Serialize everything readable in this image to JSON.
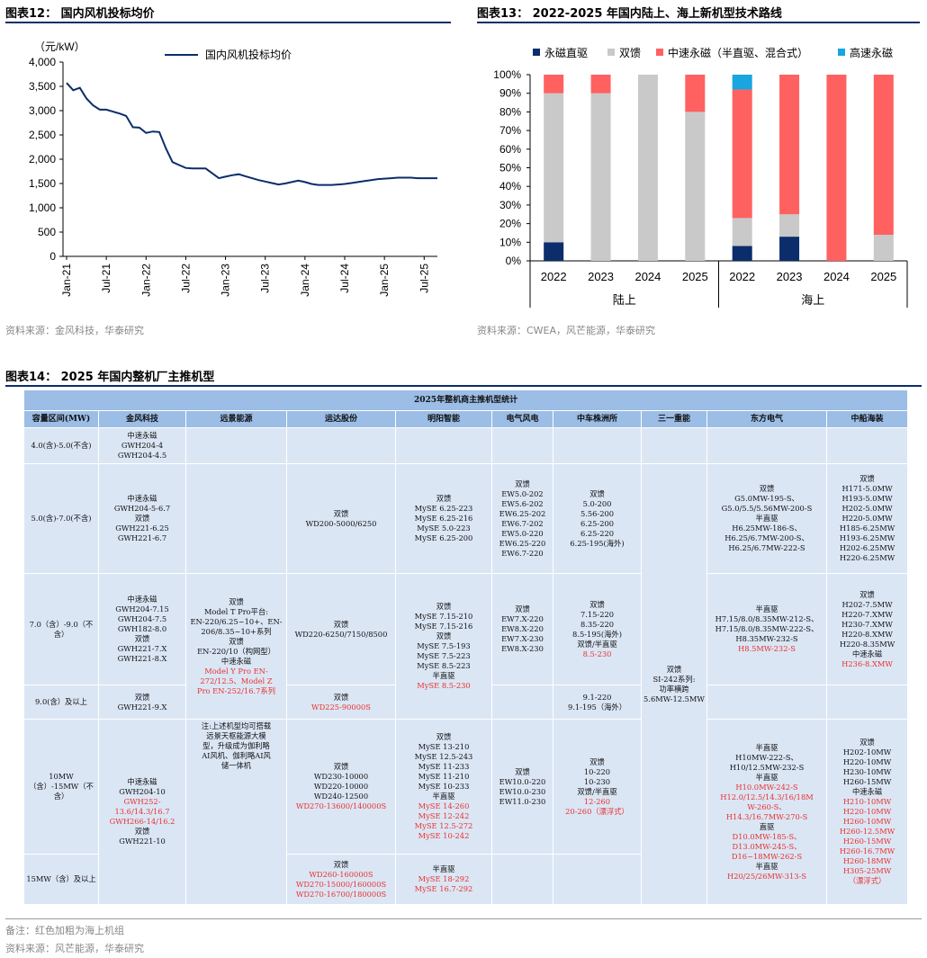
{
  "fig12": {
    "title": "图表12：  国内风机投标均价",
    "source": "资料来源：金风科技，华泰研究"
  },
  "fig13": {
    "title": "图表13：  2022-2025 年国内陆上、海上新机型技术路线",
    "source": "资料来源：CWEA，风芒能源，华泰研究"
  },
  "fig14": {
    "title": "图表14：  2025 年国内整机厂主推机型",
    "note": "备注：红色加粗为海上机组",
    "source": "资料来源：风芒能源，华泰研究"
  },
  "chart_data": [
    {
      "type": "line",
      "ylabel": "（元/kW）",
      "ylim": [
        0,
        4000
      ],
      "yticks": [
        "0",
        "500",
        "1,000",
        "1,500",
        "2,000",
        "2,500",
        "3,000",
        "3,500",
        "4,000"
      ],
      "xticks": [
        "Jan-21",
        "Jul-21",
        "Jan-22",
        "Jul-22",
        "Jan-23",
        "Jul-23",
        "Jan-24",
        "Jul-24",
        "Jan-25",
        "Jul-25"
      ],
      "grid": false,
      "legend_position": "top",
      "series": [
        {
          "name": "国内风机投标均价",
          "color": "#0b2d6b",
          "x": [
            "2021-01",
            "2021-02",
            "2021-03",
            "2021-04",
            "2021-05",
            "2021-06",
            "2021-07",
            "2021-08",
            "2021-09",
            "2021-10",
            "2021-11",
            "2021-12",
            "2022-01",
            "2022-02",
            "2022-03",
            "2022-04",
            "2022-05",
            "2022-06",
            "2022-07",
            "2022-08",
            "2022-09",
            "2022-10",
            "2022-11",
            "2022-12",
            "2023-01",
            "2023-02",
            "2023-03",
            "2023-04",
            "2023-05",
            "2023-06",
            "2023-07",
            "2023-08",
            "2023-09",
            "2023-10",
            "2023-11",
            "2023-12",
            "2024-01",
            "2024-02",
            "2024-03",
            "2024-04",
            "2024-05",
            "2024-06",
            "2024-07",
            "2024-08",
            "2024-09",
            "2024-10",
            "2024-11",
            "2024-12",
            "2025-01",
            "2025-02",
            "2025-03",
            "2025-04",
            "2025-05",
            "2025-06",
            "2025-07",
            "2025-08",
            "2025-09"
          ],
          "values": [
            3570,
            3420,
            3470,
            3250,
            3110,
            3020,
            3020,
            2980,
            2940,
            2890,
            2660,
            2650,
            2540,
            2570,
            2560,
            2220,
            1940,
            1880,
            1820,
            1810,
            1810,
            1810,
            1710,
            1610,
            1640,
            1670,
            1690,
            1650,
            1610,
            1570,
            1540,
            1510,
            1480,
            1500,
            1530,
            1560,
            1530,
            1490,
            1470,
            1470,
            1470,
            1480,
            1490,
            1510,
            1530,
            1550,
            1570,
            1590,
            1600,
            1610,
            1620,
            1620,
            1620,
            1610,
            1610,
            1610,
            1610
          ]
        }
      ]
    },
    {
      "type": "bar",
      "stacked": true,
      "ylim": [
        0,
        100
      ],
      "yticks": [
        "0%",
        "10%",
        "20%",
        "30%",
        "40%",
        "50%",
        "60%",
        "70%",
        "80%",
        "90%",
        "100%"
      ],
      "categories": [
        "2022",
        "2023",
        "2024",
        "2025",
        "2022",
        "2023",
        "2024",
        "2025"
      ],
      "groups": [
        {
          "label": "陆上",
          "span": 4
        },
        {
          "label": "海上",
          "span": 4
        }
      ],
      "legend_position": "top",
      "series": [
        {
          "name": "永磁直驱",
          "color": "#0b2d6b",
          "values": [
            10,
            0,
            0,
            0,
            8,
            13,
            0,
            0
          ]
        },
        {
          "name": "双馈",
          "color": "#c9c9c9",
          "values": [
            80,
            90,
            100,
            80,
            15,
            12,
            0,
            14
          ]
        },
        {
          "name": "中速永磁（半直驱、混合式）",
          "color": "#ff6161",
          "values": [
            10,
            10,
            0,
            20,
            69,
            75,
            100,
            86
          ]
        },
        {
          "name": "高速永磁",
          "color": "#18a5e0",
          "values": [
            0,
            0,
            0,
            0,
            8,
            0,
            0,
            0
          ]
        }
      ]
    },
    {
      "type": "table",
      "title": "2025年整机商主推机型统计",
      "columns": [
        "容量区间(MW)",
        "金风科技",
        "远景能源",
        "运达股份",
        "明阳智能",
        "电气风电",
        "中车株洲所",
        "三一重能",
        "东方电气",
        "中船海装"
      ],
      "rows": [
        [
          "4.0(含)-5.0(不含)"
        ],
        [
          "5.0(含)-7.0(不含)"
        ],
        [
          "7.0（含）-9.0（不含）"
        ],
        [
          "9.0(含）及以上"
        ],
        [
          "10MW（含）-15MW（不含）"
        ],
        [
          "15MW（含）及以上"
        ]
      ]
    }
  ],
  "table": {
    "c_r1_jf": [
      {
        "t": "中速永磁"
      },
      {
        "t": "GWH204-4"
      },
      {
        "t": "GWH204-4.5"
      }
    ],
    "c_r2_jf": [
      {
        "t": "中速永磁"
      },
      {
        "t": "GWH204-5-6.7"
      },
      {
        "t": "双馈"
      },
      {
        "t": "GWH221-6.25"
      },
      {
        "t": "GWH221-6.7"
      }
    ],
    "c_r3_jf": [
      {
        "t": "中速永磁"
      },
      {
        "t": "GWH204-7.15"
      },
      {
        "t": "GWH204-7.5"
      },
      {
        "t": "GWH182-8.0"
      },
      {
        "t": "双馈"
      },
      {
        "t": "GWH221-7.X"
      },
      {
        "t": "GWH221-8.X"
      }
    ],
    "c_r4_jf": [
      {
        "t": "双馈"
      },
      {
        "t": "GWH221-9.X"
      }
    ],
    "c_r56_jf": [
      {
        "t": "中速永磁"
      },
      {
        "t": "GWH204-10"
      },
      {
        "t": "GWH252-",
        "r": 1
      },
      {
        "t": "13.6/14.3/16.7",
        "r": 1
      },
      {
        "t": "GWH266-14/16.2",
        "r": 1
      },
      {
        "t": "双馈"
      },
      {
        "t": "GWH221-10"
      }
    ],
    "c_yj_a": [
      {
        "t": "双馈"
      },
      {
        "t": "Model T Pro平台:"
      },
      {
        "t": "EN-220/6.25~10+、EN-"
      },
      {
        "t": "206/8.35~10+系列"
      },
      {
        "t": "双馈"
      },
      {
        "t": "EN-220/10（构网型）"
      },
      {
        "t": "中速永磁"
      },
      {
        "t": "Model Y Pro EN-",
        "r": 1
      },
      {
        "t": "272/12.5、Model Z",
        "r": 1
      },
      {
        "t": "Pro EN-252/16.7系列",
        "r": 1
      }
    ],
    "c_yj_b": [
      {
        "t": "注:上述机型均可搭载"
      },
      {
        "t": "远景天枢能源大模"
      },
      {
        "t": "型，升级成为伽利略"
      },
      {
        "t": "AI风机、伽利略AI风"
      },
      {
        "t": "储一体机"
      }
    ],
    "c_r2_yd": [
      {
        "t": "双馈"
      },
      {
        "t": "WD200-5000/6250"
      }
    ],
    "c_r3_yd": [
      {
        "t": "双馈"
      },
      {
        "t": "WD220-6250/7150/8500"
      }
    ],
    "c_r4_yd": [
      {
        "t": "双馈"
      },
      {
        "t": "WD225-90000S",
        "r": 1
      }
    ],
    "c_r5_yd": [
      {
        "t": "双馈"
      },
      {
        "t": "WD230-10000"
      },
      {
        "t": "WD220-10000"
      },
      {
        "t": "WD240-12500"
      },
      {
        "t": "WD270-13600/140000S",
        "r": 1
      }
    ],
    "c_r6_yd": [
      {
        "t": "双馈"
      },
      {
        "t": "WD260-160000S",
        "r": 1
      },
      {
        "t": "WD270-15000/160000S",
        "r": 1
      },
      {
        "t": "WD270-16700/180000S",
        "r": 1
      }
    ],
    "c_r2_my": [
      {
        "t": "双馈"
      },
      {
        "t": "MySE 6.25-223"
      },
      {
        "t": "MySE 6.25-216"
      },
      {
        "t": "MySE 5.0-223"
      },
      {
        "t": "MySE 6.25-200"
      }
    ],
    "c_r3_my": [
      {
        "t": "双馈"
      },
      {
        "t": "MySE 7.15-210"
      },
      {
        "t": "MySE 7.15-216"
      },
      {
        "t": "双馈"
      },
      {
        "t": "MySE 7.5-193"
      },
      {
        "t": "MySE 7.5-223"
      },
      {
        "t": "MySE 8.5-223"
      },
      {
        "t": "半直驱"
      },
      {
        "t": "MySE 8.5-230",
        "r": 1
      }
    ],
    "c_r5_my": [
      {
        "t": "双馈"
      },
      {
        "t": "MySE 13-210"
      },
      {
        "t": "MySE 12.5-243"
      },
      {
        "t": "MySE 11-233"
      },
      {
        "t": "MySE 11-210"
      },
      {
        "t": "MySE 10-233"
      },
      {
        "t": "半直驱"
      },
      {
        "t": "MySE 14-260",
        "r": 1
      },
      {
        "t": "MySE 12-242",
        "r": 1
      },
      {
        "t": "MySE 12.5-272",
        "r": 1
      },
      {
        "t": "MySE 10-242",
        "r": 1
      }
    ],
    "c_r6_my": [
      {
        "t": "半直驱"
      },
      {
        "t": "MySE 18-292",
        "r": 1
      },
      {
        "t": "MySE 16.7-292",
        "r": 1
      }
    ],
    "c_r2_dq": [
      {
        "t": "双馈"
      },
      {
        "t": "EW5.0-202"
      },
      {
        "t": "EW5.6-202"
      },
      {
        "t": "EW6.25-202"
      },
      {
        "t": "EW6.7-202"
      },
      {
        "t": "EW5.0-220"
      },
      {
        "t": "EW6.25-220"
      },
      {
        "t": "EW6.7-220"
      }
    ],
    "c_r3_dq": [
      {
        "t": "双馈"
      },
      {
        "t": "EW7.X-220"
      },
      {
        "t": "EW8.X-220"
      },
      {
        "t": "EW7.X-230"
      },
      {
        "t": "EW8.X-230"
      }
    ],
    "c_r5_dq": [
      {
        "t": "双馈"
      },
      {
        "t": "EW10.0-220"
      },
      {
        "t": "EW10.0-230"
      },
      {
        "t": "EW11.0-230"
      }
    ],
    "c_r2_zc": [
      {
        "t": "双馈"
      },
      {
        "t": "5.0-200"
      },
      {
        "t": "5.56-200"
      },
      {
        "t": "6.25-200"
      },
      {
        "t": "6.25-220"
      },
      {
        "t": "6.25-195(海外)"
      }
    ],
    "c_r3_zc": [
      {
        "t": "双馈"
      },
      {
        "t": "7.15-220"
      },
      {
        "t": "8.35-220"
      },
      {
        "t": "8.5-195(海外)"
      },
      {
        "t": "双馈/半直驱"
      },
      {
        "t": "8.5-230",
        "r": 1
      }
    ],
    "c_r4_zc": [
      {
        "t": "9.1-220"
      },
      {
        "t": "9.1-195（海外）"
      }
    ],
    "c_r5_zc": [
      {
        "t": "双馈"
      },
      {
        "t": "10-220"
      },
      {
        "t": "10-230"
      },
      {
        "t": "双馈/半直驱"
      },
      {
        "t": "12-260",
        "r": 1
      },
      {
        "t": "20-260（漂浮式）",
        "r": 1
      }
    ],
    "c_sy": [
      {
        "t": "双馈"
      },
      {
        "t": "SI-242系列:"
      },
      {
        "t": "功率横跨"
      },
      {
        "t": "5.6MW-12.5MW"
      }
    ],
    "c_r2_df": [
      {
        "t": "双馈"
      },
      {
        "t": "G5.0MW-195-S、"
      },
      {
        "t": "G5.0/5.5/5.56MW-200-S"
      },
      {
        "t": "半直驱"
      },
      {
        "t": "H6.25MW-186-S、"
      },
      {
        "t": "H6.25/6.7MW-200-S、"
      },
      {
        "t": "H6.25/6.7MW-222-S"
      }
    ],
    "c_r3_df": [
      {
        "t": "半直驱"
      },
      {
        "t": "H7.15/8.0/8.35MW-212-S、"
      },
      {
        "t": "H7.15/8.0/8.35MW-222-S、"
      },
      {
        "t": "H8.35MW-232-S"
      },
      {
        "t": "H8.5MW-232-S",
        "r": 1
      }
    ],
    "c_r56_df": [
      {
        "t": "半直驱"
      },
      {
        "t": "H10MW-222-S、"
      },
      {
        "t": "H10/12.5MW-232-S"
      },
      {
        "t": "半直驱"
      },
      {
        "t": "H10.0MW-242-S",
        "r": 1
      },
      {
        "t": "H12.0/12.5/14.3/16/18M",
        "r": 1
      },
      {
        "t": "W-260-S、",
        "r": 1
      },
      {
        "t": "H14.3/16.7MW-270-S",
        "r": 1
      },
      {
        "t": "直驱"
      },
      {
        "t": "D10.0MW-185-S、",
        "r": 1
      },
      {
        "t": "D13.0MW-245-S、",
        "r": 1
      },
      {
        "t": "D16~18MW-262-S",
        "r": 1
      },
      {
        "t": "半直驱"
      },
      {
        "t": "H20/25/26MW-313-S",
        "r": 1
      }
    ],
    "c_r2_zz": [
      {
        "t": "双馈"
      },
      {
        "t": "H171-5.0MW"
      },
      {
        "t": "H193-5.0MW"
      },
      {
        "t": "H202-5.0MW"
      },
      {
        "t": "H220-5.0MW"
      },
      {
        "t": "H185-6.25MW"
      },
      {
        "t": "H193-6.25MW"
      },
      {
        "t": "H202-6.25MW"
      },
      {
        "t": "H220-6.25MW"
      }
    ],
    "c_r3_zz": [
      {
        "t": "双馈"
      },
      {
        "t": "H202-7.5MW"
      },
      {
        "t": "H220-7.XMW"
      },
      {
        "t": "H230-7.XMW"
      },
      {
        "t": "H220-8.XMW"
      },
      {
        "t": "H220-8.35MW"
      },
      {
        "t": "中速永磁"
      },
      {
        "t": "H236-8.XMW",
        "r": 1
      }
    ],
    "c_r56_zz": [
      {
        "t": "双馈"
      },
      {
        "t": "H202-10MW"
      },
      {
        "t": "H220-10MW"
      },
      {
        "t": "H230-10MW"
      },
      {
        "t": "H260-15MW"
      },
      {
        "t": "中速永磁"
      },
      {
        "t": "H210-10MW",
        "r": 1
      },
      {
        "t": "H220-10MW",
        "r": 1
      },
      {
        "t": "H260-10MW",
        "r": 1
      },
      {
        "t": "H260-12.5MW",
        "r": 1
      },
      {
        "t": "H260-15MW",
        "r": 1
      },
      {
        "t": "H260-16.7MW",
        "r": 1
      },
      {
        "t": "H260-18MW",
        "r": 1
      },
      {
        "t": "H305-25MW",
        "r": 1
      },
      {
        "t": "（漂浮式）",
        "r": 1
      }
    ]
  }
}
